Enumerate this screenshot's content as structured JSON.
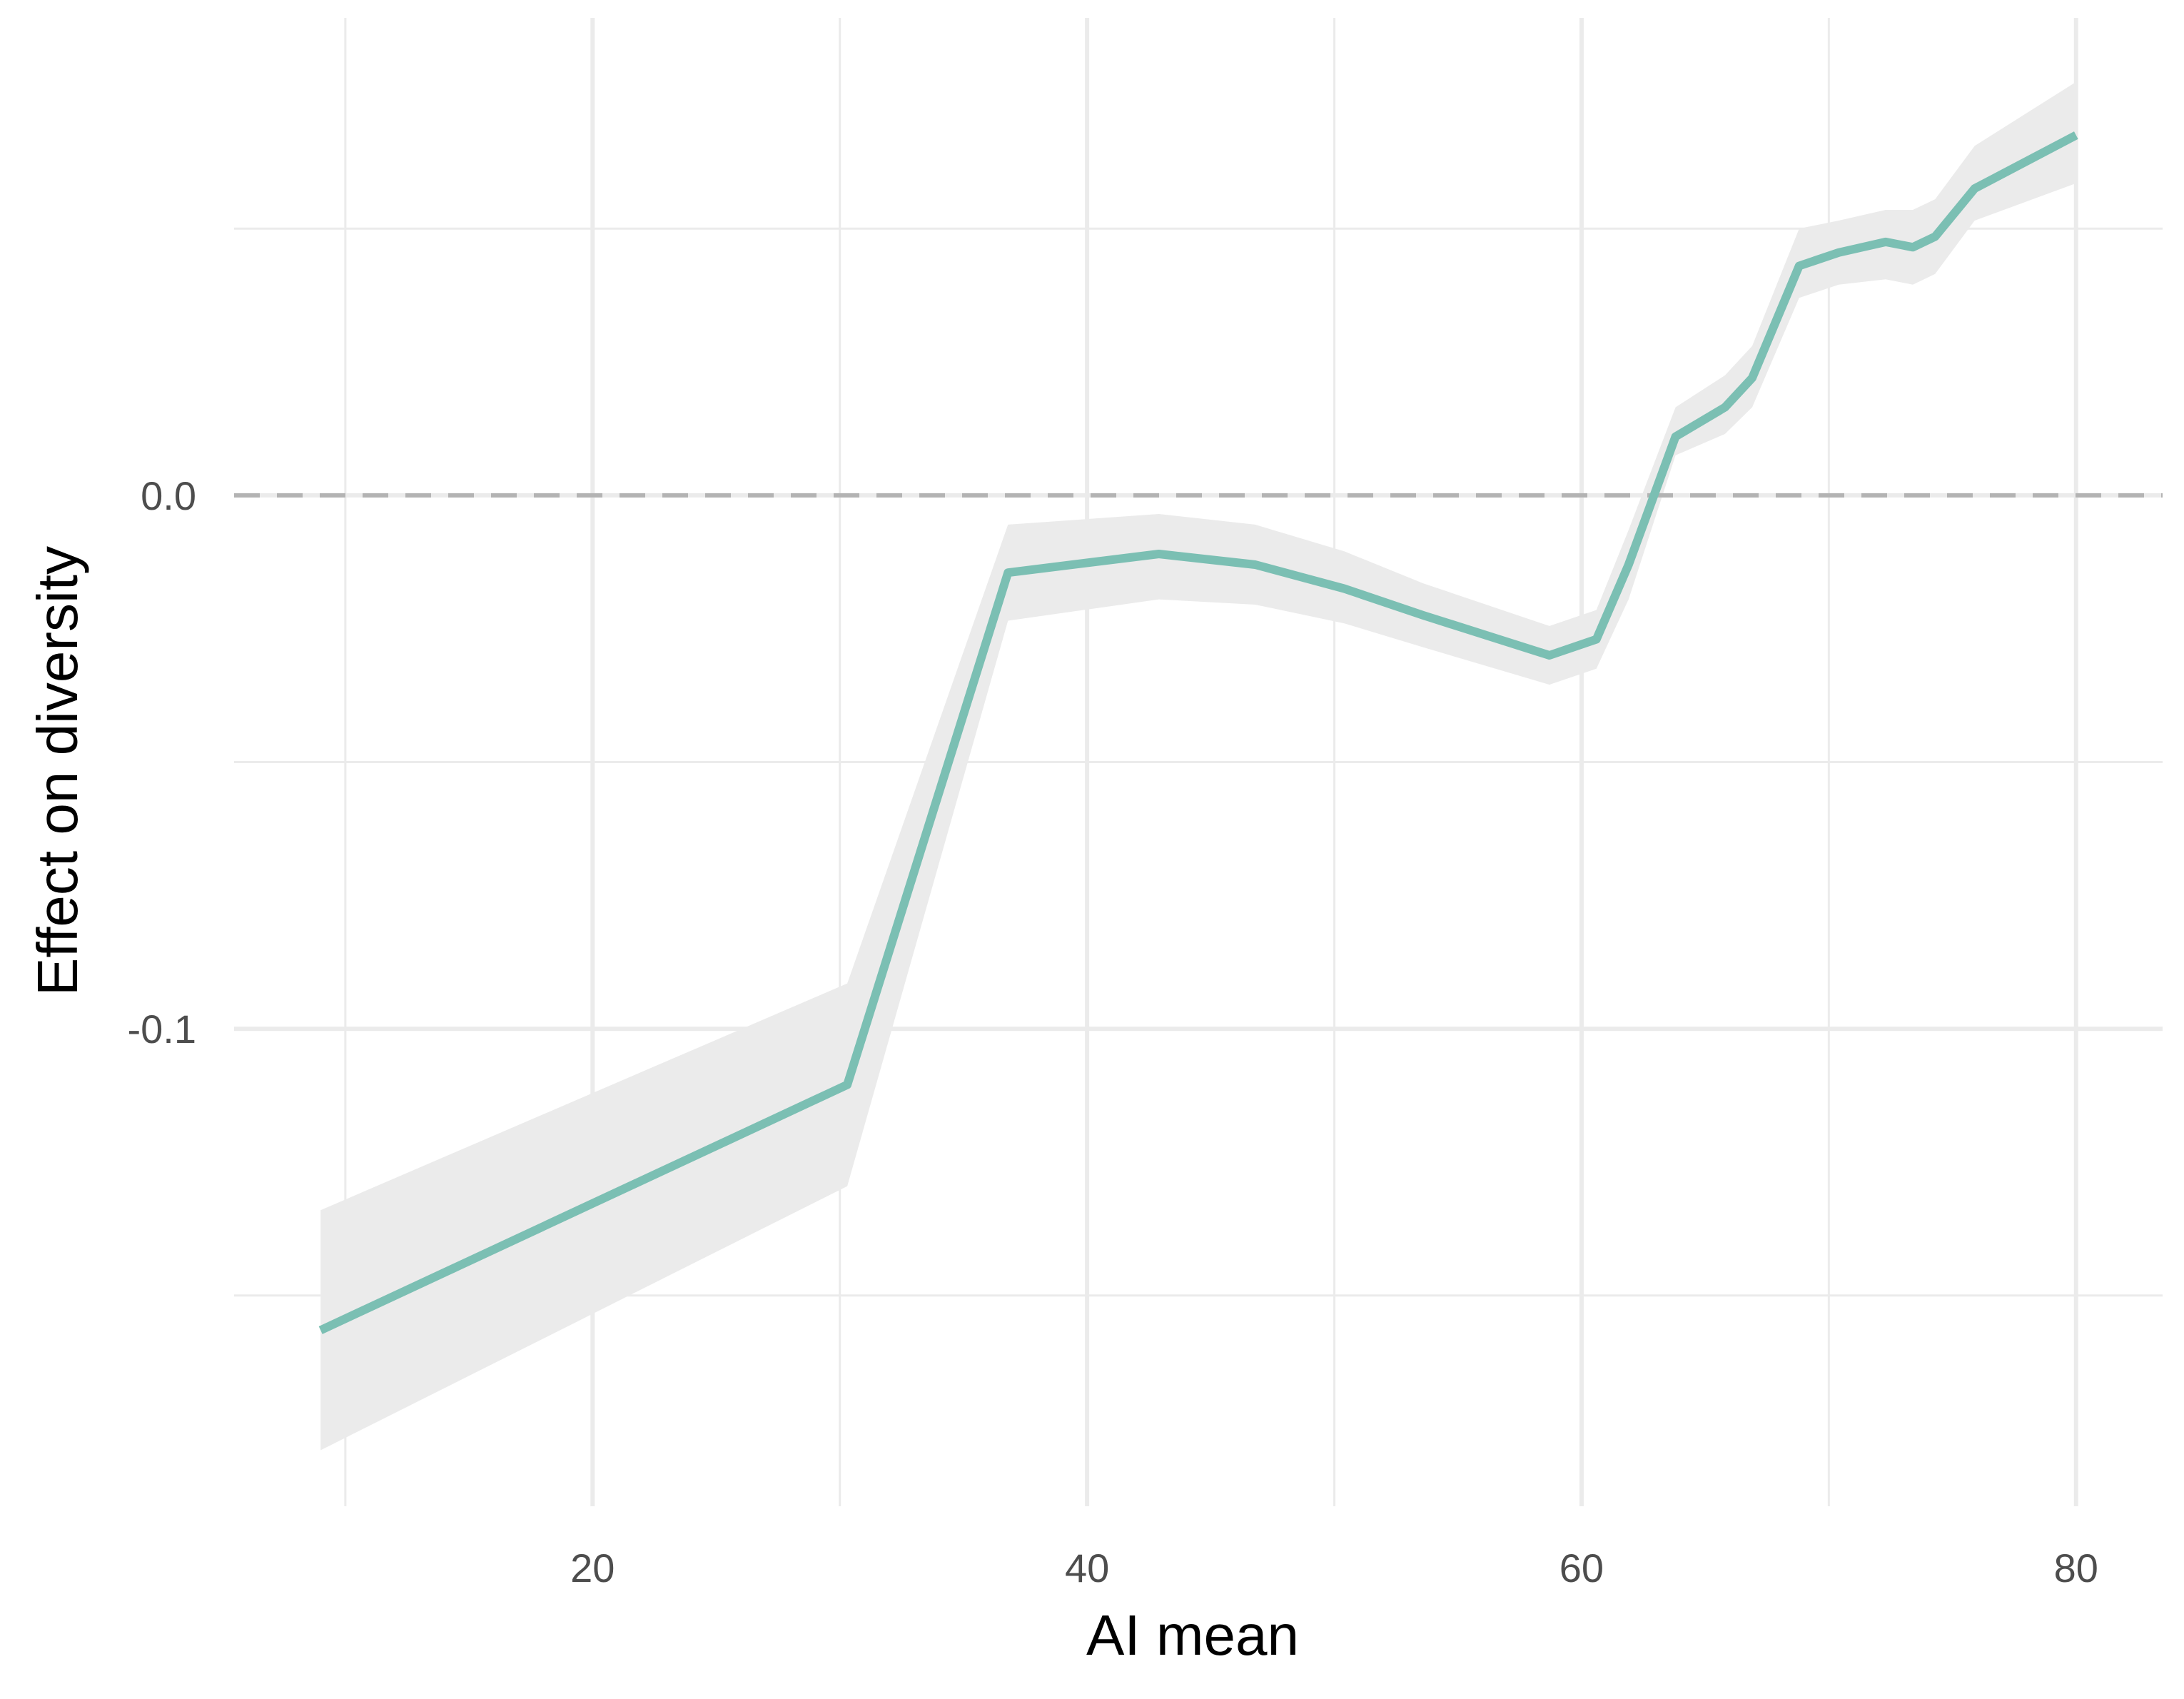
{
  "chart_data": {
    "type": "line",
    "xlabel": "AI mean",
    "ylabel": "Effect on diversity",
    "xlim": [
      5.5,
      83.5
    ],
    "ylim": [
      -0.1895,
      0.0895
    ],
    "x_ticks": [
      20,
      40,
      60,
      80
    ],
    "x_tick_labels": [
      "20",
      "40",
      "60",
      "80"
    ],
    "y_ticks": [
      0.0,
      -0.1
    ],
    "y_tick_labels": [
      "0.0",
      "-0.1"
    ],
    "x_minor_gridlines": [
      10,
      30,
      50,
      70
    ],
    "y_minor_gridlines": [
      0.05,
      -0.05,
      -0.15
    ],
    "grid": true,
    "reference_line": {
      "y": 0.0,
      "style": "dashed"
    },
    "colors": {
      "line": "#7bbfb3",
      "ribbon": "#ebebeb",
      "grid": "#ebebeb",
      "reference": "#b3b3b3"
    },
    "series": [
      {
        "x": [
          9,
          30.3,
          36.8,
          42.9,
          46.8,
          50.4,
          53.6,
          58.7,
          60.6,
          61.9,
          63.8,
          65.8,
          66.9,
          68.8,
          70.4,
          72.3,
          73.4,
          74.3,
          75.9,
          80
        ],
        "y": [
          -0.1565,
          -0.1105,
          -0.0145,
          -0.011,
          -0.013,
          -0.0175,
          -0.0225,
          -0.03,
          -0.027,
          -0.013,
          0.011,
          0.0165,
          0.022,
          0.043,
          0.0455,
          0.0475,
          0.0465,
          0.0485,
          0.0575,
          0.0675
        ],
        "lower": [
          -0.179,
          -0.1295,
          -0.0235,
          -0.0195,
          -0.0205,
          -0.024,
          -0.0285,
          -0.0355,
          -0.0325,
          -0.0195,
          0.0075,
          0.0115,
          0.0165,
          0.037,
          0.0395,
          0.0405,
          0.0395,
          0.0415,
          0.0515,
          0.0585
        ],
        "upper": [
          -0.134,
          -0.0915,
          -0.0055,
          -0.0035,
          -0.0055,
          -0.0105,
          -0.0165,
          -0.0245,
          -0.0215,
          -0.0065,
          0.0165,
          0.0225,
          0.028,
          0.05,
          0.0515,
          0.0535,
          0.0535,
          0.0555,
          0.0655,
          0.0775
        ]
      }
    ]
  }
}
